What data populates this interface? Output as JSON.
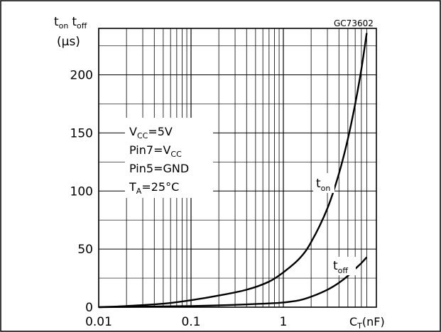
{
  "chart_data": {
    "type": "line",
    "code": "GC73602",
    "ylabel_top": {
      "t1": "t",
      "t1_sub": "on",
      "t2": "t",
      "t2_sub": "off",
      "unit": "(µs)"
    },
    "xlabel": {
      "main": "C",
      "sub": "T",
      "unit": "(nF)"
    },
    "xscale": "log",
    "xlim": [
      0.01,
      8
    ],
    "ylim": [
      0,
      240
    ],
    "x_ticks": [
      {
        "value": 0.01,
        "label": "0.01"
      },
      {
        "value": 0.1,
        "label": "0.1"
      },
      {
        "value": 1,
        "label": "1"
      }
    ],
    "y_ticks": [
      {
        "value": 0,
        "label": "0"
      },
      {
        "value": 50,
        "label": "50"
      },
      {
        "value": 100,
        "label": "100"
      },
      {
        "value": 150,
        "label": "150"
      },
      {
        "value": 200,
        "label": "200"
      }
    ],
    "grid": true,
    "conditions": [
      {
        "main": "V",
        "sub": "CC",
        "rest": "=5V"
      },
      {
        "main": "Pin7=V",
        "sub": "CC",
        "rest": ""
      },
      {
        "main": "Pin5=GND",
        "sub": "",
        "rest": ""
      },
      {
        "main": "T",
        "sub": "A",
        "rest": "=25°C"
      }
    ],
    "series": [
      {
        "name": "t",
        "name_sub": "on",
        "x": [
          0.01,
          0.02,
          0.05,
          0.1,
          0.2,
          0.4,
          0.7,
          1,
          1.5,
          2,
          3,
          4,
          5,
          6,
          7,
          8
        ],
        "y": [
          0,
          1,
          3,
          6,
          10,
          15,
          22,
          30,
          42,
          56,
          85,
          115,
          145,
          175,
          205,
          236
        ]
      },
      {
        "name": "t",
        "name_sub": "off",
        "x": [
          0.01,
          0.1,
          0.3,
          0.6,
          1,
          1.5,
          2,
          3,
          4,
          5,
          6,
          7,
          8
        ],
        "y": [
          0,
          1,
          2,
          3,
          4,
          6,
          9,
          15,
          21,
          27,
          33,
          38,
          43
        ]
      }
    ]
  }
}
